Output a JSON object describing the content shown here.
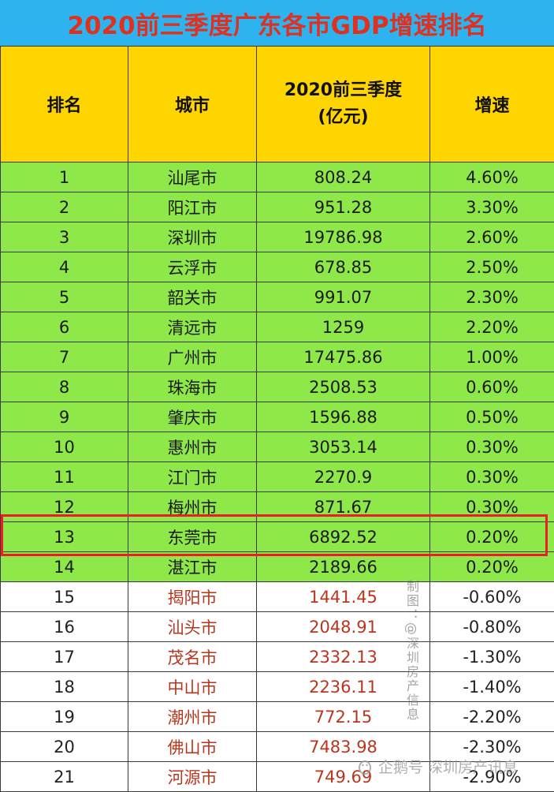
{
  "title": "2020前三季度广东各市GDP增速排名",
  "headers": {
    "rank": "排名",
    "city": "城市",
    "gdp_line1": "2020前三季度",
    "gdp_line2": "(亿元)",
    "rate": "增速"
  },
  "rows": [
    {
      "rank": "1",
      "city": "汕尾市",
      "gdp": "808.24",
      "rate": "4.60%"
    },
    {
      "rank": "2",
      "city": "阳江市",
      "gdp": "951.28",
      "rate": "3.30%"
    },
    {
      "rank": "3",
      "city": "深圳市",
      "gdp": "19786.98",
      "rate": "2.60%"
    },
    {
      "rank": "4",
      "city": "云浮市",
      "gdp": "678.85",
      "rate": "2.50%"
    },
    {
      "rank": "5",
      "city": "韶关市",
      "gdp": "991.07",
      "rate": "2.30%"
    },
    {
      "rank": "6",
      "city": "清远市",
      "gdp": "1259",
      "rate": "2.20%"
    },
    {
      "rank": "7",
      "city": "广州市",
      "gdp": "17475.86",
      "rate": "1.00%"
    },
    {
      "rank": "8",
      "city": "珠海市",
      "gdp": "2508.53",
      "rate": "0.60%"
    },
    {
      "rank": "9",
      "city": "肇庆市",
      "gdp": "1596.88",
      "rate": "0.50%"
    },
    {
      "rank": "10",
      "city": "惠州市",
      "gdp": "3053.14",
      "rate": "0.30%"
    },
    {
      "rank": "11",
      "city": "江门市",
      "gdp": "2270.9",
      "rate": "0.30%"
    },
    {
      "rank": "12",
      "city": "梅州市",
      "gdp": "871.67",
      "rate": "0.30%"
    },
    {
      "rank": "13",
      "city": "东莞市",
      "gdp": "6892.52",
      "rate": "0.20%"
    },
    {
      "rank": "14",
      "city": "湛江市",
      "gdp": "2189.66",
      "rate": "0.20%"
    },
    {
      "rank": "15",
      "city": "揭阳市",
      "gdp": "1441.45",
      "rate": "-0.60%"
    },
    {
      "rank": "16",
      "city": "汕头市",
      "gdp": "2048.91",
      "rate": "-0.80%"
    },
    {
      "rank": "17",
      "city": "茂名市",
      "gdp": "2332.13",
      "rate": "-1.30%"
    },
    {
      "rank": "18",
      "city": "中山市",
      "gdp": "2236.11",
      "rate": "-1.40%"
    },
    {
      "rank": "19",
      "city": "潮州市",
      "gdp": "772.15",
      "rate": "-2.20%"
    },
    {
      "rank": "20",
      "city": "佛山市",
      "gdp": "7483.98",
      "rate": "-2.30%"
    },
    {
      "rank": "21",
      "city": "河源市",
      "gdp": "749.69",
      "rate": "-2.90%"
    }
  ],
  "watermarks": {
    "vertical": "制图：@深圳房产信息",
    "bottom": "企鹅号 深圳房产讯息"
  },
  "colors": {
    "title_bg": "#2db4ef",
    "title_text": "#e03020",
    "header_bg": "#ffd500",
    "positive_row_bg": "#8fe84a",
    "negative_text": "#b8361e",
    "highlight_border": "#ee1c25"
  }
}
